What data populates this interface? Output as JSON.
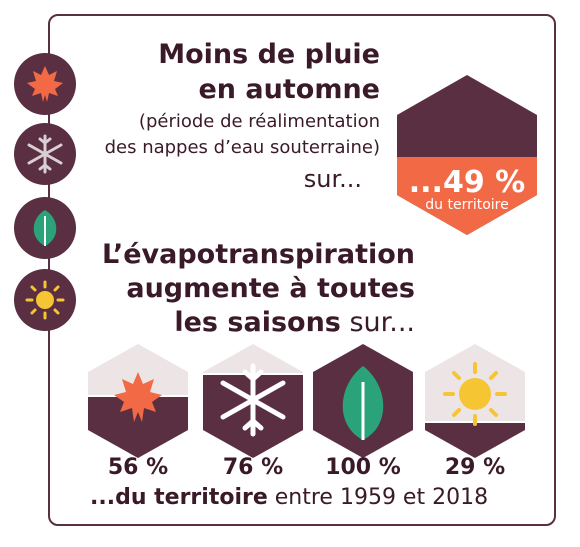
{
  "heading_rain": {
    "line1": "Moins de pluie",
    "line2": "en automne"
  },
  "subtext": {
    "line1": "(période de réalimentation",
    "line2": "des nappes d’eau souterraine)"
  },
  "sur_label": "sur...",
  "big_stat": {
    "value": "...49 %",
    "label": "du territoire",
    "fraction": 0.49
  },
  "heading_evap": {
    "line1": "L’évapotranspiration",
    "line2": "augmente à toutes",
    "line3_bold": "les saisons",
    "line3_light": " sur..."
  },
  "seasons": [
    {
      "name": "autumn",
      "icon": "leaf-maple-icon",
      "pct": "56 %",
      "fraction": 0.56
    },
    {
      "name": "winter",
      "icon": "snowflake-icon",
      "pct": "76 %",
      "fraction": 0.76
    },
    {
      "name": "spring",
      "icon": "leaf-icon",
      "pct": "100 %",
      "fraction": 1.0
    },
    {
      "name": "summer",
      "icon": "sun-icon",
      "pct": "29 %",
      "fraction": 0.29
    }
  ],
  "footer": {
    "bold": "...du territoire",
    "light": " entre 1959 et 2018"
  },
  "colors": {
    "plum": "#5a2f42",
    "orange": "#f26a45",
    "mist": "#ede4e6",
    "green": "#2aa37a",
    "yellow": "#f6c534"
  }
}
